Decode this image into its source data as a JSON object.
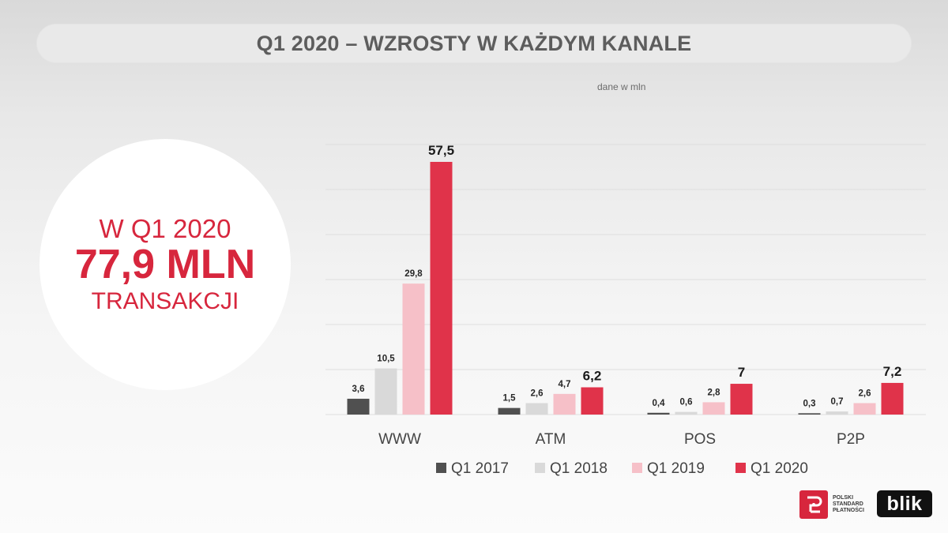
{
  "header": {
    "title": "Q1 2020 – WZROSTY W KAŻDYM KANALE"
  },
  "units_note": "dane w mln",
  "highlight": {
    "line1": "W Q1 2020",
    "line2": "77,9 MLN",
    "line3": "TRANSAKCJI"
  },
  "logos": {
    "psp_text": [
      "POLSKI",
      "STANDARD",
      "PŁATNOŚCI"
    ],
    "blik_text": "blik"
  },
  "chart_data": {
    "type": "bar",
    "title": "Q1 2020 – WZROSTY W KAŻDYM KANALE",
    "ylabel": "",
    "xlabel": "",
    "units": "dane w mln",
    "categories": [
      "WWW",
      "ATM",
      "POS",
      "P2P"
    ],
    "ylim": [
      0,
      60
    ],
    "grid": true,
    "legend_position": "bottom",
    "series": [
      {
        "name": "Q1 2017",
        "color": "#505050",
        "values": [
          3.6,
          1.5,
          0.4,
          0.3
        ],
        "labels": [
          "3,6",
          "1,5",
          "0,4",
          "0,3"
        ]
      },
      {
        "name": "Q1 2018",
        "color": "#d9d9d9",
        "values": [
          10.5,
          2.6,
          0.6,
          0.7
        ],
        "labels": [
          "10,5",
          "2,6",
          "0,6",
          "0,7"
        ]
      },
      {
        "name": "Q1 2019",
        "color": "#f6c0c8",
        "values": [
          29.8,
          4.7,
          2.8,
          2.6
        ],
        "labels": [
          "29,8",
          "4,7",
          "2,8",
          "2,6"
        ]
      },
      {
        "name": "Q1 2020",
        "color": "#e0334a",
        "values": [
          57.5,
          6.2,
          7,
          7.2
        ],
        "labels": [
          "57,5",
          "6,2",
          "7",
          "7,2"
        ]
      }
    ]
  }
}
